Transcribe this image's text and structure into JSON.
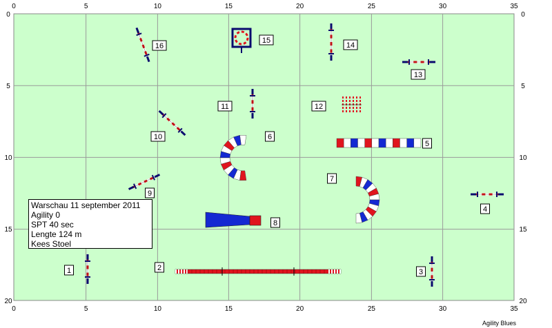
{
  "course": {
    "x_axis_ticks": [
      "0",
      "5",
      "10",
      "15",
      "20",
      "25",
      "30",
      "35"
    ],
    "y_axis_ticks": [
      "0",
      "5",
      "10",
      "15",
      "20"
    ],
    "field_color": "#ccffcc",
    "obstacle_colors": {
      "red": "#e0141e",
      "blue": "#1428d2",
      "white": "#ffffff",
      "navy": "#0a0a6e"
    },
    "obstacles": [
      {
        "number": "1",
        "type": "jump"
      },
      {
        "number": "2",
        "type": "dogwalk"
      },
      {
        "number": "3",
        "type": "jump"
      },
      {
        "number": "4",
        "type": "jump"
      },
      {
        "number": "5",
        "type": "tunnel"
      },
      {
        "number": "6",
        "type": "tunnel"
      },
      {
        "number": "7",
        "type": "tunnel"
      },
      {
        "number": "8",
        "type": "closed-tunnel"
      },
      {
        "number": "9",
        "type": "jump"
      },
      {
        "number": "10",
        "type": "jump"
      },
      {
        "number": "11",
        "type": "jump"
      },
      {
        "number": "12",
        "type": "weave"
      },
      {
        "number": "13",
        "type": "jump"
      },
      {
        "number": "14",
        "type": "jump"
      },
      {
        "number": "15",
        "type": "tire"
      },
      {
        "number": "16",
        "type": "jump"
      }
    ]
  },
  "info_box": {
    "lines": [
      "Warschau 11 september 2011",
      "Agility 0",
      "SPT 40 sec",
      "Lengte 124 m",
      "Kees Stoel"
    ]
  },
  "credit": "Agility Blues"
}
